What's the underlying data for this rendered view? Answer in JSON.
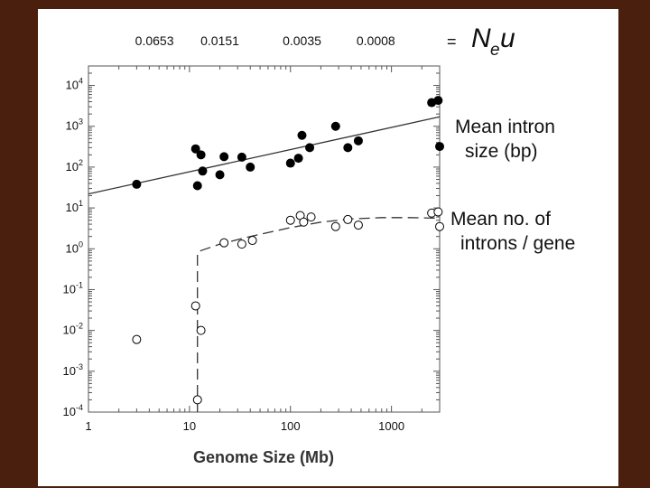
{
  "chart_data": {
    "type": "scatter",
    "x_scale": "log",
    "y_scale": "log",
    "xlim": [
      1,
      3000
    ],
    "ylim": [
      0.0001,
      30000
    ],
    "xlabel": "Genome Size (Mb)",
    "x_ticks": [
      1,
      10,
      100,
      1000
    ],
    "x_tick_labels": [
      "1",
      "10",
      "100",
      "1000"
    ],
    "y_ticks": [
      0.0001,
      0.001,
      0.01,
      0.1,
      1,
      10,
      100,
      1000,
      10000
    ],
    "y_tick_bases": [
      "10",
      "10",
      "10",
      "10",
      "10",
      "10",
      "10",
      "10",
      "10"
    ],
    "y_tick_exps": [
      "-4",
      "-3",
      "-2",
      "-1",
      "0",
      "1",
      "2",
      "3",
      "4"
    ],
    "top_axis": {
      "tick_labels": [
        "0.0653",
        "0.0151",
        "0.0035",
        "0.0008"
      ],
      "tick_positions_x": [
        4.5,
        20,
        130,
        700
      ],
      "equals": "=",
      "label_main_1": "N",
      "label_sub": "e",
      "label_main_2": "u"
    },
    "series": [
      {
        "label_line1": "Mean intron",
        "label_line2": "size (bp)",
        "marker": "filled-circle",
        "points": [
          [
            3,
            38
          ],
          [
            11.5,
            280
          ],
          [
            12,
            35
          ],
          [
            13,
            200
          ],
          [
            13.5,
            80
          ],
          [
            20,
            65
          ],
          [
            22,
            180
          ],
          [
            33,
            175
          ],
          [
            40,
            100
          ],
          [
            100,
            125
          ],
          [
            120,
            165
          ],
          [
            130,
            600
          ],
          [
            155,
            300
          ],
          [
            280,
            1000
          ],
          [
            370,
            300
          ],
          [
            470,
            440
          ],
          [
            2500,
            3800
          ],
          [
            2900,
            4300
          ],
          [
            3000,
            320
          ]
        ],
        "fit": {
          "type": "line",
          "x": [
            1,
            3000
          ],
          "y": [
            22,
            1700
          ]
        }
      },
      {
        "label_line1": "Mean no. of",
        "label_line2": "introns / gene",
        "marker": "open-circle",
        "points": [
          [
            3,
            0.006
          ],
          [
            11.5,
            0.04
          ],
          [
            12,
            0.0002
          ],
          [
            13,
            0.01
          ],
          [
            22,
            1.4
          ],
          [
            33,
            1.3
          ],
          [
            42,
            1.6
          ],
          [
            100,
            5
          ],
          [
            125,
            6.5
          ],
          [
            135,
            4.5
          ],
          [
            160,
            6
          ],
          [
            280,
            3.5
          ],
          [
            370,
            5.2
          ],
          [
            470,
            3.8
          ],
          [
            2500,
            7.5
          ],
          [
            2900,
            8
          ],
          [
            3000,
            3.5
          ]
        ],
        "fit": {
          "type": "dashed-curve",
          "x": [
            12,
            12,
            13,
            20,
            40,
            100,
            200,
            400,
            800,
            1500,
            3000
          ],
          "y": [
            0.0001,
            0.8,
            0.9,
            1.3,
            2.0,
            3.3,
            4.5,
            5.4,
            5.8,
            5.8,
            5.6
          ]
        }
      }
    ]
  }
}
